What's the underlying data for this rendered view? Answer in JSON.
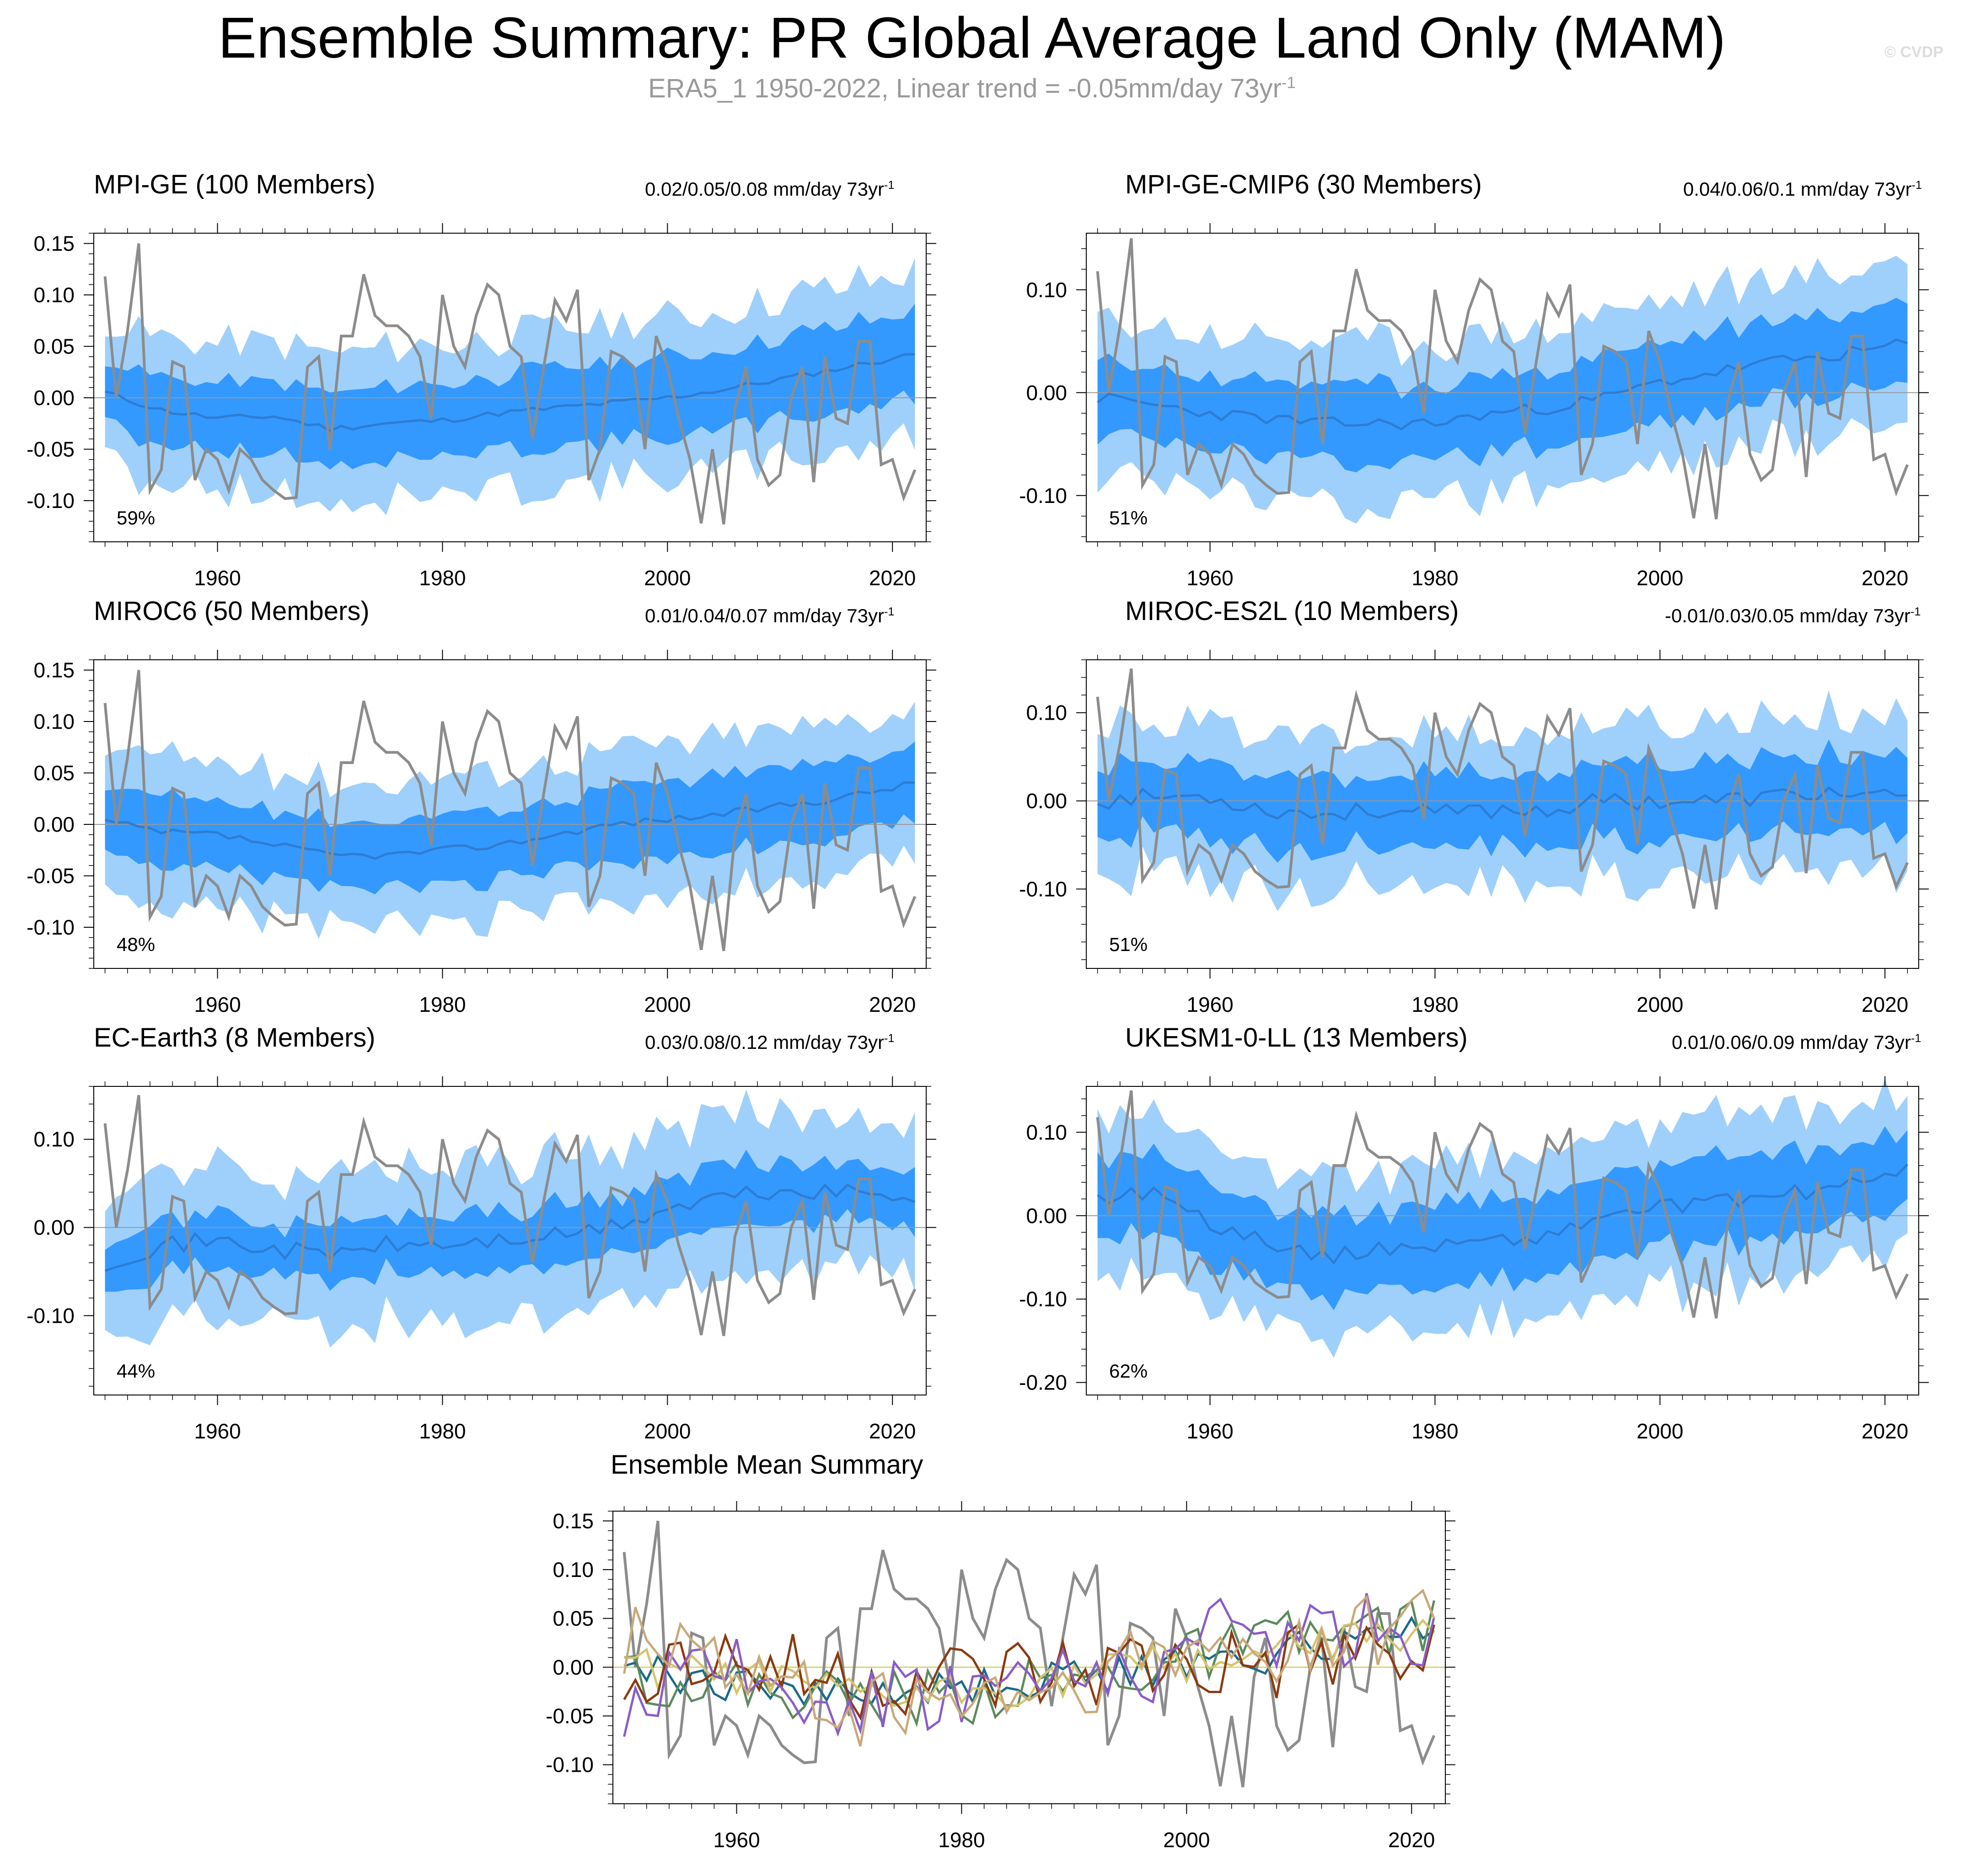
{
  "figure": {
    "title": "Ensemble Summary: PR Global Average Land Only (MAM)",
    "subtitle_main": "ERA5_1 1950-2022, Linear trend = -0.05mm/day 73yr",
    "subtitle_sup": "-1",
    "watermark": "© CVDP",
    "x_ticks": [
      1960,
      1980,
      2000,
      2020
    ],
    "x_range": [
      1949,
      2023
    ]
  },
  "colors": {
    "outer_band": "#9fd0fb",
    "inner_band": "#3399ff",
    "ens_mean_line": "#2d7dd2",
    "observed": "#8c8c8c",
    "zero_line": "#999999"
  },
  "observed_series": {
    "name": "ERA5_1",
    "color": "#8c8c8c",
    "anchors": [
      [
        1950,
        0.118
      ],
      [
        1951,
        0.0
      ],
      [
        1952,
        0.065
      ],
      [
        1953,
        0.15
      ],
      [
        1954,
        -0.09
      ],
      [
        1955,
        -0.07
      ],
      [
        1956,
        0.035
      ],
      [
        1957,
        0.03
      ],
      [
        1958,
        -0.08
      ],
      [
        1959,
        -0.05
      ],
      [
        1960,
        -0.06
      ],
      [
        1961,
        -0.09
      ],
      [
        1962,
        -0.05
      ],
      [
        1963,
        -0.06
      ],
      [
        1964,
        -0.08
      ],
      [
        1965,
        -0.09
      ],
      [
        1966,
        -0.098
      ],
      [
        1967,
        -0.097
      ],
      [
        1968,
        0.03
      ],
      [
        1969,
        0.04
      ],
      [
        1970,
        -0.05
      ],
      [
        1971,
        0.06
      ],
      [
        1972,
        0.06
      ],
      [
        1973,
        0.12
      ],
      [
        1974,
        0.08
      ],
      [
        1975,
        0.07
      ],
      [
        1976,
        0.07
      ],
      [
        1977,
        0.06
      ],
      [
        1978,
        0.04
      ],
      [
        1979,
        -0.02
      ],
      [
        1980,
        0.1
      ],
      [
        1981,
        0.05
      ],
      [
        1982,
        0.03
      ],
      [
        1983,
        0.08
      ],
      [
        1984,
        0.11
      ],
      [
        1985,
        0.1
      ],
      [
        1986,
        0.05
      ],
      [
        1987,
        0.04
      ],
      [
        1988,
        -0.04
      ],
      [
        1989,
        0.03
      ],
      [
        1990,
        0.095
      ],
      [
        1991,
        0.075
      ],
      [
        1992,
        0.105
      ],
      [
        1993,
        -0.08
      ],
      [
        1994,
        -0.05
      ],
      [
        1995,
        0.045
      ],
      [
        1996,
        0.04
      ],
      [
        1997,
        0.03
      ],
      [
        1998,
        -0.05
      ],
      [
        1999,
        0.06
      ],
      [
        2000,
        0.03
      ],
      [
        2001,
        -0.02
      ],
      [
        2002,
        -0.06
      ],
      [
        2003,
        -0.122
      ],
      [
        2004,
        -0.05
      ],
      [
        2005,
        -0.123
      ],
      [
        2006,
        -0.01
      ],
      [
        2007,
        0.03
      ],
      [
        2008,
        -0.06
      ],
      [
        2009,
        -0.085
      ],
      [
        2010,
        -0.075
      ],
      [
        2011,
        0.0
      ],
      [
        2012,
        0.03
      ],
      [
        2013,
        -0.082
      ],
      [
        2014,
        0.04
      ],
      [
        2015,
        -0.02
      ],
      [
        2016,
        -0.025
      ],
      [
        2017,
        0.055
      ],
      [
        2018,
        0.055
      ],
      [
        2019,
        -0.065
      ],
      [
        2020,
        -0.06
      ],
      [
        2021,
        -0.097
      ],
      [
        2022,
        -0.07
      ]
    ]
  },
  "panels": [
    {
      "id": "mpi-ge",
      "title": "MPI-GE (100 Members)",
      "title_color": "#1a6b8a",
      "stat_main": "0.02/0.05/0.08 mm/day 73yr",
      "stat_sup": "-1",
      "percent": "59%",
      "ylim": [
        -0.14,
        0.16
      ],
      "y_ticks": [
        0.15,
        0.1,
        0.05,
        0.0,
        -0.05,
        -0.1
      ],
      "y_tick_labels": [
        "0.15",
        "0.10",
        "0.05",
        "0.00",
        "-0.05",
        "-0.10"
      ],
      "ens_mean_anchors": [
        [
          1950,
          0.005
        ],
        [
          1955,
          -0.012
        ],
        [
          1960,
          -0.02
        ],
        [
          1965,
          -0.018
        ],
        [
          1970,
          -0.03
        ],
        [
          1975,
          -0.025
        ],
        [
          1980,
          -0.022
        ],
        [
          1985,
          -0.015
        ],
        [
          1990,
          -0.01
        ],
        [
          1995,
          -0.005
        ],
        [
          2000,
          0.0
        ],
        [
          2005,
          0.008
        ],
        [
          2010,
          0.018
        ],
        [
          2015,
          0.028
        ],
        [
          2022,
          0.042
        ]
      ],
      "inner_half": [
        0.032,
        0.042
      ],
      "outer_half": [
        0.07,
        0.08
      ],
      "noise": 0.006,
      "seed": 11
    },
    {
      "id": "mpi-ge-cmip6",
      "title": "MPI-GE-CMIP6 (30 Members)",
      "title_color": "#5c8a5c",
      "stat_main": "0.04/0.06/0.1 mm/day 73yr",
      "stat_sup": "-1",
      "percent": "51%",
      "ylim": [
        -0.145,
        0.155
      ],
      "y_ticks": [
        0.1,
        0.0,
        -0.1
      ],
      "y_tick_labels": [
        "0.10",
        "0.00",
        "-0.10"
      ],
      "ens_mean_anchors": [
        [
          1950,
          -0.005
        ],
        [
          1955,
          -0.012
        ],
        [
          1960,
          -0.02
        ],
        [
          1965,
          -0.025
        ],
        [
          1970,
          -0.03
        ],
        [
          1975,
          -0.03
        ],
        [
          1980,
          -0.03
        ],
        [
          1985,
          -0.02
        ],
        [
          1990,
          -0.015
        ],
        [
          1995,
          -0.005
        ],
        [
          2000,
          0.01
        ],
        [
          2005,
          0.02
        ],
        [
          2010,
          0.03
        ],
        [
          2015,
          0.035
        ],
        [
          2022,
          0.048
        ]
      ],
      "inner_half": [
        0.035,
        0.04
      ],
      "outer_half": [
        0.075,
        0.08
      ],
      "noise": 0.012,
      "seed": 23
    },
    {
      "id": "miroc6",
      "title": "MIROC6 (50 Members)",
      "title_color": "#d4c46e",
      "stat_main": "0.01/0.04/0.07 mm/day 73yr",
      "stat_sup": "-1",
      "percent": "48%",
      "ylim": [
        -0.14,
        0.16
      ],
      "y_ticks": [
        0.15,
        0.1,
        0.05,
        0.0,
        -0.05,
        -0.1
      ],
      "y_tick_labels": [
        "0.15",
        "0.10",
        "0.05",
        "0.00",
        "-0.05",
        "-0.10"
      ],
      "ens_mean_anchors": [
        [
          1950,
          0.003
        ],
        [
          1955,
          -0.008
        ],
        [
          1960,
          -0.01
        ],
        [
          1965,
          -0.02
        ],
        [
          1970,
          -0.03
        ],
        [
          1975,
          -0.03
        ],
        [
          1980,
          -0.025
        ],
        [
          1985,
          -0.02
        ],
        [
          1990,
          -0.01
        ],
        [
          1995,
          0.0
        ],
        [
          2000,
          0.005
        ],
        [
          2005,
          0.01
        ],
        [
          2010,
          0.018
        ],
        [
          2015,
          0.025
        ],
        [
          2022,
          0.04
        ]
      ],
      "inner_half": [
        0.032,
        0.038
      ],
      "outer_half": [
        0.07,
        0.075
      ],
      "noise": 0.007,
      "seed": 37
    },
    {
      "id": "miroc-es2l",
      "title": "MIROC-ES2L (10 Members)",
      "title_color": "#8b3a0f",
      "stat_main": "-0.01/0.03/0.05 mm/day 73yr",
      "stat_sup": "-1",
      "percent": "51%",
      "ylim": [
        -0.19,
        0.16
      ],
      "y_ticks": [
        0.1,
        0.0,
        -0.1
      ],
      "y_tick_labels": [
        "0.10",
        "0.00",
        "-0.10"
      ],
      "ens_mean_anchors": [
        [
          1950,
          0.0
        ],
        [
          1955,
          0.005
        ],
        [
          1960,
          0.005
        ],
        [
          1965,
          -0.01
        ],
        [
          1970,
          -0.015
        ],
        [
          1975,
          -0.01
        ],
        [
          1980,
          -0.015
        ],
        [
          1985,
          -0.01
        ],
        [
          1990,
          -0.01
        ],
        [
          1995,
          0.0
        ],
        [
          2000,
          0.0
        ],
        [
          2005,
          0.0
        ],
        [
          2010,
          0.005
        ],
        [
          2015,
          0.01
        ],
        [
          2022,
          0.0
        ]
      ],
      "inner_half": [
        0.04,
        0.045
      ],
      "outer_half": [
        0.085,
        0.09
      ],
      "noise": 0.02,
      "seed": 53
    },
    {
      "id": "ec-earth3",
      "title": "EC-Earth3 (8 Members)",
      "title_color": "#8a5cc8",
      "stat_main": "0.03/0.08/0.12 mm/day 73yr",
      "stat_sup": "-1",
      "percent": "44%",
      "ylim": [
        -0.19,
        0.16
      ],
      "y_ticks": [
        0.1,
        0.0,
        -0.1
      ],
      "y_tick_labels": [
        "0.10",
        "0.00",
        "-0.10"
      ],
      "ens_mean_anchors": [
        [
          1950,
          -0.04
        ],
        [
          1955,
          -0.02
        ],
        [
          1960,
          -0.015
        ],
        [
          1965,
          -0.025
        ],
        [
          1970,
          -0.03
        ],
        [
          1975,
          -0.02
        ],
        [
          1980,
          -0.02
        ],
        [
          1985,
          -0.015
        ],
        [
          1990,
          -0.01
        ],
        [
          1995,
          0.0
        ],
        [
          2000,
          0.02
        ],
        [
          2005,
          0.035
        ],
        [
          2010,
          0.04
        ],
        [
          2015,
          0.04
        ],
        [
          2022,
          0.035
        ]
      ],
      "inner_half": [
        0.03,
        0.035
      ],
      "outer_half": [
        0.085,
        0.09
      ],
      "noise": 0.02,
      "seed": 71
    },
    {
      "id": "ukesm1-0-ll",
      "title": "UKESM1-0-LL (13 Members)",
      "title_color": "#c9a87a",
      "stat_main": "0.01/0.06/0.09 mm/day 73yr",
      "stat_sup": "-1",
      "percent": "62%",
      "ylim": [
        -0.215,
        0.155
      ],
      "y_ticks": [
        0.1,
        0.0,
        -0.1,
        -0.2
      ],
      "y_tick_labels": [
        "0.10",
        "0.00",
        "-0.10",
        "-0.20"
      ],
      "ens_mean_anchors": [
        [
          1950,
          0.02
        ],
        [
          1955,
          0.03
        ],
        [
          1960,
          -0.01
        ],
        [
          1965,
          -0.03
        ],
        [
          1970,
          -0.05
        ],
        [
          1975,
          -0.04
        ],
        [
          1980,
          -0.035
        ],
        [
          1985,
          -0.03
        ],
        [
          1990,
          -0.025
        ],
        [
          1995,
          0.0
        ],
        [
          2000,
          0.01
        ],
        [
          2005,
          0.015
        ],
        [
          2010,
          0.025
        ],
        [
          2015,
          0.03
        ],
        [
          2022,
          0.06
        ]
      ],
      "inner_half": [
        0.045,
        0.05
      ],
      "outer_half": [
        0.09,
        0.1
      ],
      "noise": 0.018,
      "seed": 89
    }
  ],
  "mean_summary": {
    "title": "Ensemble Mean Summary",
    "ylim": [
      -0.14,
      0.16
    ],
    "y_ticks": [
      0.15,
      0.1,
      0.05,
      0.0,
      -0.05,
      -0.1
    ],
    "y_tick_labels": [
      "0.15",
      "0.10",
      "0.05",
      "0.00",
      "-0.05",
      "-0.10"
    ]
  }
}
